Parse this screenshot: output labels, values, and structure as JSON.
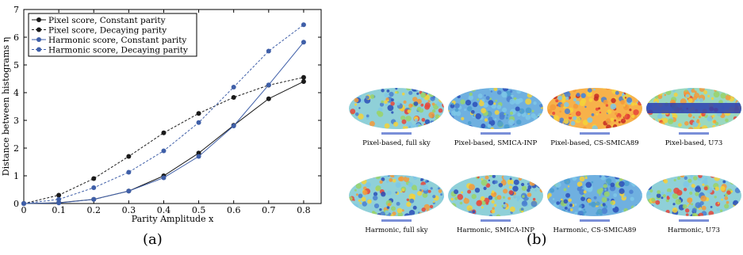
{
  "chart_data": {
    "type": "line",
    "xlabel": "Parity Amplitude x",
    "ylabel": "Distance between histograms η",
    "xlim": [
      0,
      0.85
    ],
    "ylim": [
      0,
      7
    ],
    "x": [
      0,
      0.1,
      0.2,
      0.3,
      0.4,
      0.5,
      0.6,
      0.7,
      0.8
    ],
    "xticks": [
      "0",
      "0.1",
      "0.2",
      "0.3",
      "0.4",
      "0.5",
      "0.6",
      "0.7",
      "0.8"
    ],
    "yticks": [
      "0",
      "1",
      "2",
      "3",
      "4",
      "5",
      "6",
      "7"
    ],
    "grid": false,
    "legend_position": "top-left",
    "series": [
      {
        "name": "Pixel score, Constant parity",
        "color": "#1a1a1a",
        "dash": "solid",
        "values": [
          0,
          0.03,
          0.15,
          0.45,
          1.0,
          1.82,
          2.82,
          3.78,
          4.4
        ]
      },
      {
        "name": "Pixel score, Decaying parity",
        "color": "#1a1a1a",
        "dash": "dashed",
        "values": [
          0,
          0.3,
          0.9,
          1.7,
          2.55,
          3.25,
          3.83,
          4.27,
          4.55
        ]
      },
      {
        "name": "Harmonic score, Constant parity",
        "color": "#3f5fa8",
        "dash": "solid",
        "values": [
          0,
          0.02,
          0.15,
          0.45,
          0.93,
          1.7,
          2.8,
          4.28,
          5.82
        ]
      },
      {
        "name": "Harmonic score, Decaying parity",
        "color": "#3f5fa8",
        "dash": "dashed",
        "values": [
          0,
          0.15,
          0.57,
          1.13,
          1.9,
          2.92,
          4.2,
          5.5,
          6.45
        ]
      }
    ]
  },
  "panel_labels": {
    "a": "(a)",
    "b": "(b)"
  },
  "maps": [
    {
      "caption": "Pixel-based, full sky",
      "style": "mixed"
    },
    {
      "caption": "Pixel-based, SMICA-INP",
      "style": "cool"
    },
    {
      "caption": "Pixel-based, CS-SMICA89",
      "style": "hot"
    },
    {
      "caption": "Pixel-based, U73",
      "style": "band"
    },
    {
      "caption": "Harmonic, full sky",
      "style": "mixed"
    },
    {
      "caption": "Harmonic, SMICA-INP",
      "style": "mixed"
    },
    {
      "caption": "Harmonic, CS-SMICA89",
      "style": "cool"
    },
    {
      "caption": "Harmonic, U73",
      "style": "mixed"
    }
  ]
}
